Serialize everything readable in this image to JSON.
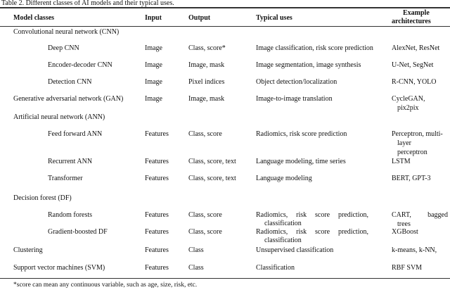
{
  "caption": "Table 2.  Different classes of AI models and their typical uses.",
  "headers": {
    "model": "Model classes",
    "input": "Input",
    "output": "Output",
    "uses": "Typical uses",
    "arch": [
      "Example",
      "architectures"
    ]
  },
  "rows": [
    {
      "model": "Convolutional neural network (CNN)",
      "level": 0,
      "input": "",
      "output": "",
      "uses": [],
      "arch": []
    },
    {
      "model": "Deep CNN",
      "level": 1,
      "input": "Image",
      "output": "Class, score*",
      "uses": [
        "Image classification, risk score prediction"
      ],
      "arch": [
        "AlexNet, ResNet"
      ]
    },
    {
      "model": "Encoder-decoder CNN",
      "level": 1,
      "input": "Image",
      "output": "Image, mask",
      "uses": [
        "Image segmentation, image synthesis"
      ],
      "arch": [
        "U-Net, SegNet"
      ]
    },
    {
      "model": "Detection CNN",
      "level": 1,
      "input": "Image",
      "output": "Pixel indices",
      "uses": [
        "Object detection/localization"
      ],
      "arch": [
        "R-CNN, YOLO"
      ]
    },
    {
      "model": "Generative adversarial network (GAN)",
      "level": 0,
      "input": "Image",
      "output": "Image, mask",
      "uses": [
        "Image-to-image translation"
      ],
      "arch": [
        "CycleGAN,",
        "pix2pix"
      ]
    },
    {
      "model": "Artificial neural network (ANN)",
      "level": 0,
      "input": "",
      "output": "",
      "uses": [],
      "arch": []
    },
    {
      "model": "Feed forward ANN",
      "level": 1,
      "input": "Features",
      "output": "Class, score",
      "uses": [
        "Radiomics, risk score prediction"
      ],
      "arch": [
        "Perceptron, multi-",
        "layer",
        "perceptron"
      ]
    },
    {
      "model": "Recurrent ANN",
      "level": 1,
      "input": "Features",
      "output": "Class, score, text",
      "uses": [
        "Language modeling, time series"
      ],
      "arch": [
        "LSTM"
      ]
    },
    {
      "model": "Transformer",
      "level": 1,
      "input": "Features",
      "output": "Class, score, text",
      "uses": [
        "Language modeling"
      ],
      "arch": [
        "BERT, GPT-3"
      ]
    },
    {
      "model": "Decision forest (DF)",
      "level": 0,
      "input": "",
      "output": "",
      "uses": [],
      "arch": []
    },
    {
      "model": "Random forests",
      "level": 1,
      "input": "Features",
      "output": "Class, score",
      "uses": [
        "Radiomics, risk score prediction,",
        "classification"
      ],
      "arch": [
        "CART, bagged",
        "trees"
      ]
    },
    {
      "model": "Gradient-boosted DF",
      "level": 1,
      "input": "Features",
      "output": "Class, score",
      "uses": [
        "Radiomics, risk score prediction,",
        "classification"
      ],
      "arch": [
        "XGBoost"
      ]
    },
    {
      "model": "Clustering",
      "level": 0,
      "input": "Features",
      "output": "Class",
      "uses": [
        "Unsupervised classification"
      ],
      "arch": [
        "k-means, k-NN,"
      ]
    },
    {
      "model": "Support vector machines (SVM)",
      "level": 0,
      "input": "Features",
      "output": "Class",
      "uses": [
        "Classification"
      ],
      "arch": [
        "RBF SVM"
      ]
    }
  ],
  "footnote": "*score can mean any continuous variable, such as age, size, risk, etc."
}
